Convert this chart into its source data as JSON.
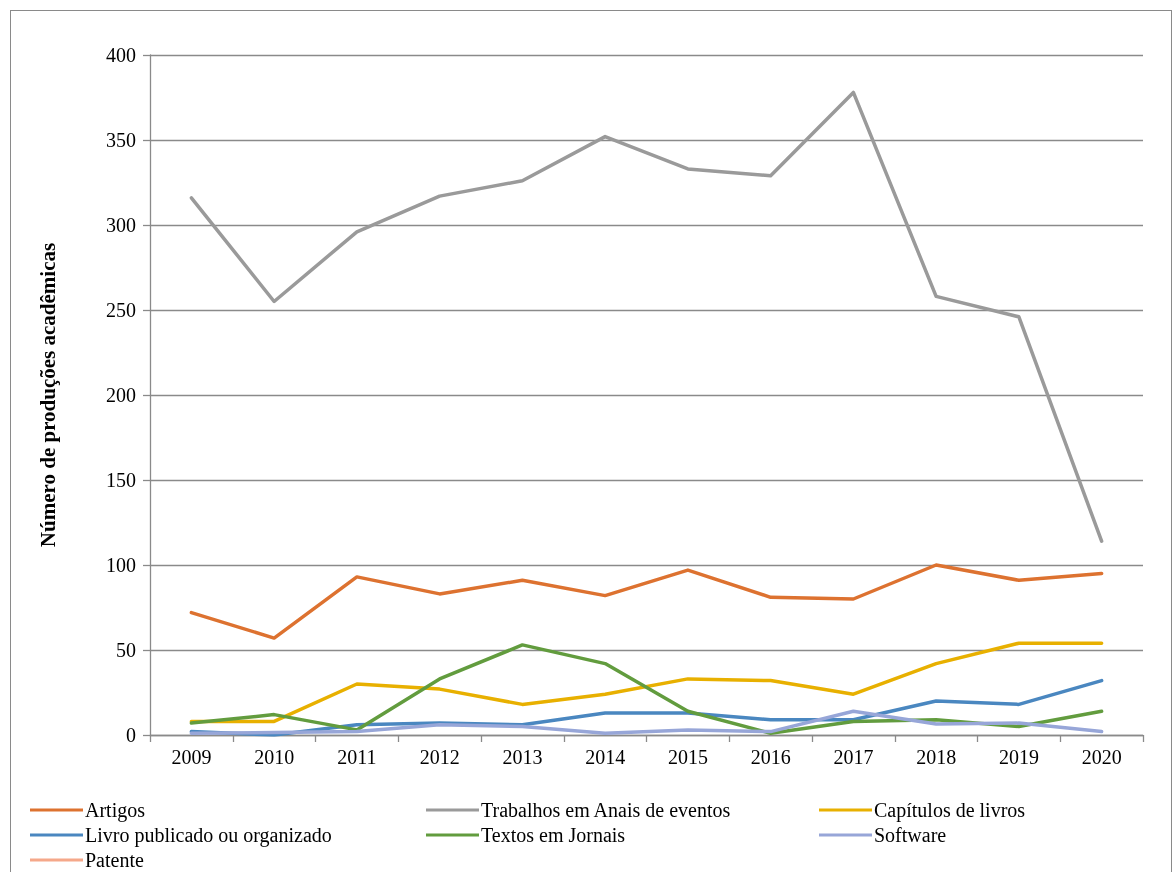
{
  "chart_data": {
    "type": "line",
    "ylabel": "Número de produções acadêmicas",
    "categories": [
      "2009",
      "2010",
      "2011",
      "2012",
      "2013",
      "2014",
      "2015",
      "2016",
      "2017",
      "2018",
      "2019",
      "2020"
    ],
    "series": [
      {
        "name": "Artigos",
        "color": "#dd7230",
        "values": [
          72,
          57,
          93,
          83,
          91,
          82,
          97,
          81,
          80,
          100,
          91,
          95
        ]
      },
      {
        "name": "Trabalhos em Anais de eventos",
        "color": "#9a9a9a",
        "values": [
          316,
          255,
          296,
          317,
          326,
          352,
          333,
          329,
          378,
          258,
          246,
          114
        ]
      },
      {
        "name": "Capítulos de livros",
        "color": "#e8b000",
        "values": [
          8,
          8,
          30,
          27,
          18,
          24,
          33,
          32,
          24,
          42,
          54,
          54
        ]
      },
      {
        "name": "Livro publicado ou organizado",
        "color": "#4a87c0",
        "values": [
          2,
          0,
          6,
          7,
          6,
          13,
          13,
          9,
          9,
          20,
          18,
          32
        ]
      },
      {
        "name": "Textos em Jornais",
        "color": "#629c3e",
        "values": [
          7,
          12,
          3,
          33,
          53,
          42,
          14,
          1,
          8,
          9,
          5,
          14
        ]
      },
      {
        "name": "Software",
        "color": "#97a6d8",
        "values": [
          1,
          1.5,
          2,
          6,
          5,
          1,
          3,
          2,
          14,
          6.5,
          7,
          2
        ]
      },
      {
        "name": "Patente",
        "color": "#f5a88a",
        "values": [
          null,
          null,
          null,
          null,
          null,
          null,
          null,
          null,
          null,
          null,
          null,
          null
        ]
      }
    ],
    "ylim": [
      0,
      400
    ],
    "yticks": [
      0,
      50,
      100,
      150,
      200,
      250,
      300,
      350,
      400
    ],
    "grid": "y",
    "legend": "bottom",
    "marker": "none",
    "line_style": "solid"
  }
}
